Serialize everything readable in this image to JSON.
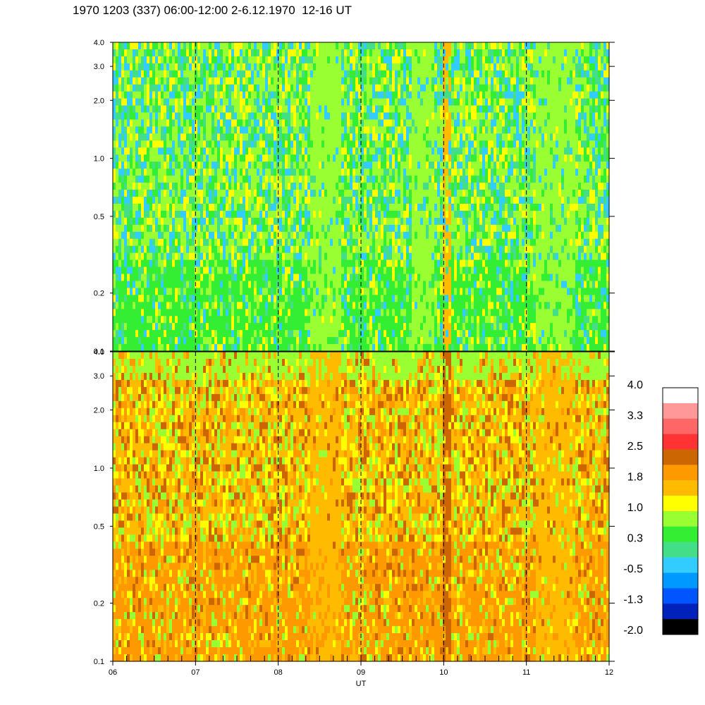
{
  "title": "1970 1203 (337) 06:00-12:00 2-6.12.1970  12-16 UT",
  "chart_data": [
    {
      "type": "heatmap",
      "panel": "upper",
      "y_scale": "log",
      "y_ticks": [
        0.1,
        0.2,
        0.5,
        1.0,
        2.0,
        3.0,
        4.0
      ],
      "y_tick_labels": [
        "0.1",
        "0.2",
        "0.5",
        "1.0",
        "2.0",
        "3.0",
        "4.0"
      ],
      "ylim": [
        0.1,
        4.0
      ],
      "xlim": [
        6,
        12
      ],
      "hour_markers": [
        7,
        8,
        9,
        10,
        11
      ],
      "dominant_levels": "0.3 to 1.0",
      "enhancements": [
        {
          "x_start": 8.4,
          "x_end": 8.75,
          "level": 1.0
        },
        {
          "x_start": 9.6,
          "x_end": 9.9,
          "level": 1.0
        },
        {
          "x_start": 10.0,
          "x_end": 10.08,
          "level": 1.8
        },
        {
          "x_start": 11.1,
          "x_end": 11.6,
          "level": 1.0
        }
      ]
    },
    {
      "type": "heatmap",
      "panel": "lower",
      "y_scale": "log",
      "y_ticks": [
        0.1,
        0.2,
        0.5,
        1.0,
        2.0,
        3.0,
        4.0
      ],
      "y_tick_labels": [
        "0.1",
        "0.2",
        "0.5",
        "1.0",
        "2.0",
        "3.0",
        "4.0"
      ],
      "ylim": [
        0.1,
        4.0
      ],
      "xlim": [
        6,
        12
      ],
      "x_ticks": [
        6,
        7,
        8,
        9,
        10,
        11,
        12
      ],
      "x_tick_labels": [
        "06",
        "07",
        "08",
        "09",
        "10",
        "11",
        "12"
      ],
      "xlabel": "UT",
      "hour_markers": [
        7,
        8,
        9,
        10,
        11
      ],
      "dominant_levels": "1.0 to 1.8",
      "enhancements": [
        {
          "x_start": 10.0,
          "x_end": 10.08,
          "level": 2.5
        },
        {
          "x_start": 8.4,
          "x_end": 8.75,
          "level": 1.8
        },
        {
          "x_start": 11.1,
          "x_end": 11.6,
          "level": 1.8
        }
      ]
    }
  ],
  "colorbar": {
    "labels": [
      "4.0",
      "3.3",
      "2.5",
      "1.8",
      "1.0",
      "0.3",
      "-0.5",
      "-1.3",
      "-2.0"
    ],
    "colors": [
      "#ffffff",
      "#ff9999",
      "#ff6666",
      "#ff3333",
      "#cc6600",
      "#ff9900",
      "#ffbb00",
      "#ffff00",
      "#99ff33",
      "#33ee33",
      "#44dd88",
      "#33ccff",
      "#0099ff",
      "#0055ff",
      "#0022bb",
      "#000000"
    ]
  }
}
